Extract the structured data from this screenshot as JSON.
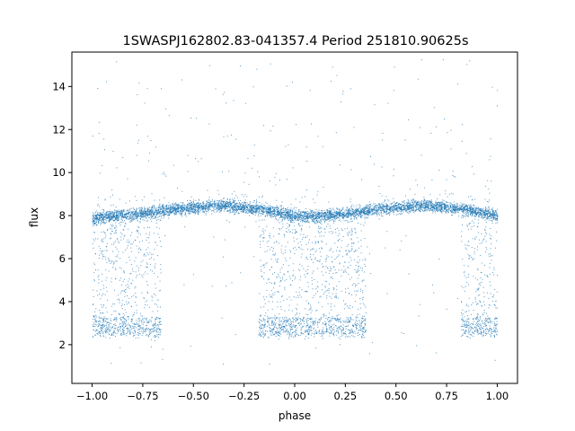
{
  "chart_data": {
    "type": "scatter",
    "title": "1SWASPJ162802.83-041357.4 Period 251810.90625s",
    "xlabel": "phase",
    "ylabel": "flux",
    "xlim": [
      -1.1,
      1.1
    ],
    "ylim": [
      0.2,
      15.6
    ],
    "xticks": [
      -1.0,
      -0.75,
      -0.5,
      -0.25,
      0.0,
      0.25,
      0.5,
      0.75,
      1.0
    ],
    "xtick_labels": [
      "−1.00",
      "−0.75",
      "−0.50",
      "−0.25",
      "0.00",
      "0.25",
      "0.50",
      "0.75",
      "1.00"
    ],
    "yticks": [
      2,
      4,
      6,
      8,
      10,
      12,
      14
    ],
    "ytick_labels": [
      "2",
      "4",
      "6",
      "8",
      "10",
      "12",
      "14"
    ],
    "grid": false,
    "marker_color": "#1f77b4",
    "series": [
      {
        "baseline_profile": [
          [
            -1.0,
            7.9
          ],
          [
            -0.9,
            8.0
          ],
          [
            -0.75,
            8.1
          ],
          [
            -0.6,
            8.3
          ],
          [
            -0.5,
            8.4
          ],
          [
            -0.35,
            8.5
          ],
          [
            -0.25,
            8.4
          ],
          [
            -0.15,
            8.3
          ],
          [
            -0.05,
            8.1
          ],
          [
            0.0,
            8.0
          ],
          [
            0.1,
            8.0
          ],
          [
            0.25,
            8.1
          ],
          [
            0.4,
            8.3
          ],
          [
            0.5,
            8.4
          ],
          [
            0.65,
            8.5
          ],
          [
            0.75,
            8.4
          ],
          [
            0.85,
            8.3
          ],
          [
            0.95,
            8.1
          ],
          [
            1.0,
            8.0
          ]
        ],
        "dip_windows": [
          [
            -1.0,
            -0.66
          ],
          [
            -0.18,
            0.35
          ],
          [
            0.82,
            1.0
          ]
        ],
        "dip_floor": [
          2.4,
          3.3
        ],
        "outlier_range": [
          1.0,
          15.3
        ]
      }
    ]
  }
}
